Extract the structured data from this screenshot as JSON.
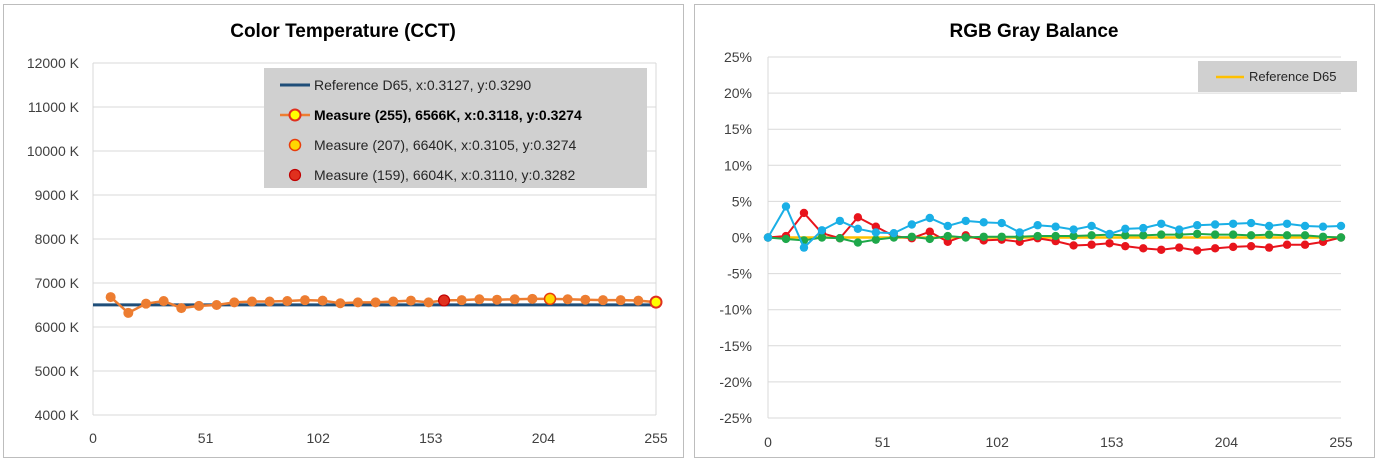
{
  "chart_data": [
    {
      "type": "line",
      "title": "Color Temperature (CCT)",
      "xlabel": "",
      "ylabel": "",
      "xlim": [
        0,
        255
      ],
      "ylim": [
        4000,
        12000
      ],
      "x_ticks": [
        "0",
        "51",
        "102",
        "153",
        "204",
        "255"
      ],
      "y_ticks": [
        "12000 K",
        "11000 K",
        "10000 K",
        "9000 K",
        "8000 K",
        "7000 K",
        "6000 K",
        "5000 K",
        "4000 K"
      ],
      "grid": "horizontal",
      "legend_position": "top-right",
      "legend": [
        "Reference D65, x:0.3127, y:0.3290",
        "Measure (255), 6566K, x:0.3118, y:0.3274",
        "Measure (207), 6640K, x:0.3105, y:0.3274",
        "Measure (159), 6604K, x:0.3110, y:0.3282"
      ],
      "colors": {
        "reference": "#1f4e79",
        "measure_line": "#ed7d31",
        "marker_255": "#ffff00",
        "marker_207": "#ffd700",
        "marker_159": "#e0301e",
        "legend_bg": "#d0d0d0"
      },
      "series": [
        {
          "name": "Reference D65, x:0.3127, y:0.3290",
          "x": [
            0,
            255
          ],
          "values": [
            6504,
            6504
          ]
        },
        {
          "name": "Measure",
          "x": [
            8,
            16,
            24,
            32,
            40,
            48,
            56,
            64,
            72,
            80,
            88,
            96,
            104,
            112,
            120,
            128,
            136,
            144,
            152,
            159,
            167,
            175,
            183,
            191,
            199,
            207,
            215,
            223,
            231,
            239,
            247,
            255
          ],
          "values": [
            6680,
            6320,
            6530,
            6590,
            6430,
            6480,
            6500,
            6560,
            6580,
            6580,
            6590,
            6610,
            6600,
            6540,
            6560,
            6560,
            6580,
            6600,
            6560,
            6604,
            6610,
            6630,
            6620,
            6630,
            6640,
            6640,
            6630,
            6620,
            6610,
            6610,
            6600,
            6566
          ]
        }
      ],
      "highlights": [
        {
          "name": "Measure (255), 6566K, x:0.3118, y:0.3274",
          "x": 255,
          "value": 6566
        },
        {
          "name": "Measure (207), 6640K, x:0.3105, y:0.3274",
          "x": 207,
          "value": 6640
        },
        {
          "name": "Measure (159), 6604K, x:0.3110, y:0.3282",
          "x": 159,
          "value": 6604
        }
      ]
    },
    {
      "type": "line",
      "title": "RGB Gray Balance",
      "xlabel": "",
      "ylabel": "",
      "xlim": [
        0,
        255
      ],
      "ylim": [
        -25,
        25
      ],
      "x_ticks": [
        "0",
        "51",
        "102",
        "153",
        "204",
        "255"
      ],
      "y_ticks": [
        "25%",
        "20%",
        "15%",
        "10%",
        "5%",
        "0%",
        "-5%",
        "-10%",
        "-15%",
        "-20%",
        "-25%"
      ],
      "grid": "horizontal",
      "legend_position": "top-right",
      "legend": [
        "Reference D65"
      ],
      "colors": {
        "reference": "#ffc000",
        "red": "#e8141c",
        "green": "#1ea84a",
        "blue": "#1aafe6",
        "legend_bg": "#d0d0d0"
      },
      "x": [
        0,
        8,
        16,
        24,
        32,
        40,
        48,
        56,
        64,
        72,
        80,
        88,
        96,
        104,
        112,
        120,
        128,
        136,
        144,
        152,
        159,
        167,
        175,
        183,
        191,
        199,
        207,
        215,
        223,
        231,
        239,
        247,
        255
      ],
      "series": [
        {
          "name": "Reference D65",
          "x": [
            0,
            255
          ],
          "values": [
            0,
            0
          ]
        },
        {
          "name": "",
          "color": "red",
          "values": [
            0,
            0.2,
            3.4,
            0.6,
            -0.1,
            2.8,
            1.5,
            0.2,
            -0.1,
            0.8,
            -0.6,
            0.3,
            -0.4,
            -0.3,
            -0.6,
            -0.1,
            -0.5,
            -1.1,
            -1.0,
            -0.8,
            -1.2,
            -1.5,
            -1.7,
            -1.4,
            -1.8,
            -1.5,
            -1.3,
            -1.2,
            -1.4,
            -1.0,
            -1.0,
            -0.6,
            0.0
          ]
        },
        {
          "name": "",
          "color": "green",
          "values": [
            0,
            -0.2,
            -0.4,
            0.0,
            -0.1,
            -0.7,
            -0.3,
            0.0,
            0.1,
            -0.2,
            0.2,
            0.0,
            0.1,
            0.1,
            0.1,
            0.2,
            0.2,
            0.2,
            0.3,
            0.4,
            0.3,
            0.3,
            0.4,
            0.4,
            0.5,
            0.4,
            0.4,
            0.3,
            0.4,
            0.3,
            0.3,
            0.1,
            0.0
          ]
        },
        {
          "name": "",
          "color": "blue",
          "values": [
            0,
            4.3,
            -1.4,
            1.0,
            2.3,
            1.2,
            0.7,
            0.6,
            1.8,
            2.7,
            1.6,
            2.3,
            2.1,
            2.0,
            0.7,
            1.7,
            1.5,
            1.1,
            1.6,
            0.5,
            1.2,
            1.3,
            1.9,
            1.1,
            1.7,
            1.8,
            1.9,
            2.0,
            1.6,
            1.9,
            1.6,
            1.5,
            1.6
          ]
        }
      ]
    }
  ]
}
